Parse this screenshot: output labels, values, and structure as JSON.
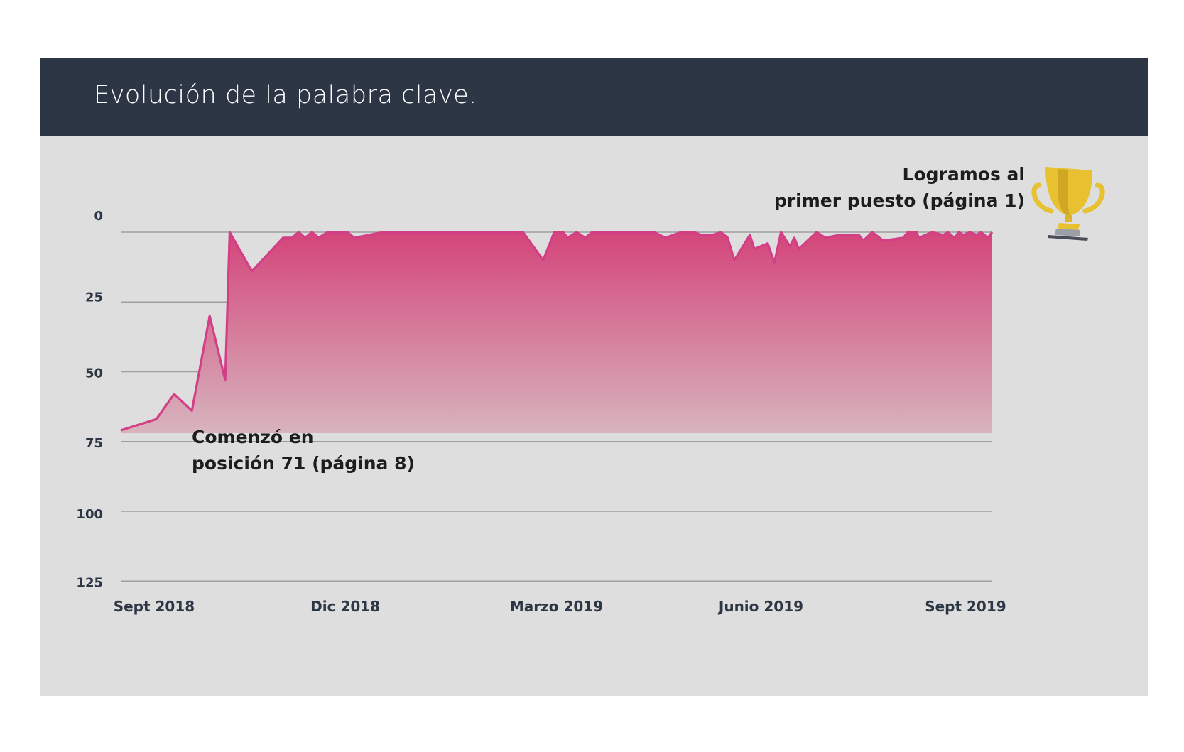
{
  "header": {
    "title": "Evolución de la palabra clave."
  },
  "icons": {
    "trophy": "trophy-icon"
  },
  "colors": {
    "line": "#d23f86",
    "header_bg": "#2d3644",
    "card_bg": "#dedede",
    "trophy": "#e7c12f"
  },
  "chart_data": {
    "type": "area",
    "title": "Evolución de la palabra clave.",
    "y_inverted": true,
    "ylim": [
      0,
      125
    ],
    "baseline": 72,
    "yticks": [
      "0",
      "25",
      "50",
      "75",
      "100",
      "125"
    ],
    "xlim": [
      "2018-08-31",
      "2019-09-27"
    ],
    "xticks": [
      {
        "label": "Sept 2018",
        "date": "2018-09-15"
      },
      {
        "label": "Dic 2018",
        "date": "2018-12-10"
      },
      {
        "label": "Marzo 2019",
        "date": "2019-03-15"
      },
      {
        "label": "Junio  2019",
        "date": "2019-06-15"
      },
      {
        "label": "Sept 2019",
        "date": "2019-09-15"
      }
    ],
    "grid": true,
    "series": [
      {
        "values": [
          [
            "2018-08-31",
            71
          ],
          [
            "2018-09-16",
            67
          ],
          [
            "2018-09-24",
            58
          ],
          [
            "2018-10-02",
            64
          ],
          [
            "2018-10-10",
            30
          ],
          [
            "2018-10-17",
            53
          ],
          [
            "2018-10-19",
            0
          ],
          [
            "2018-10-29",
            14
          ],
          [
            "2018-11-12",
            2
          ],
          [
            "2018-11-16",
            2
          ],
          [
            "2018-11-19",
            0
          ],
          [
            "2018-11-22",
            2
          ],
          [
            "2018-11-25",
            0
          ],
          [
            "2018-11-28",
            2
          ],
          [
            "2018-12-02",
            0
          ],
          [
            "2018-12-07",
            0
          ],
          [
            "2018-12-11",
            0
          ],
          [
            "2018-12-14",
            2
          ],
          [
            "2018-12-27",
            0
          ],
          [
            "2019-02-28",
            0
          ],
          [
            "2019-03-09",
            10
          ],
          [
            "2019-03-14",
            0
          ],
          [
            "2019-03-18",
            0
          ],
          [
            "2019-03-20",
            2
          ],
          [
            "2019-03-24",
            0
          ],
          [
            "2019-03-28",
            2
          ],
          [
            "2019-03-31",
            0
          ],
          [
            "2019-04-28",
            0
          ],
          [
            "2019-05-03",
            2
          ],
          [
            "2019-05-10",
            0
          ],
          [
            "2019-05-16",
            0
          ],
          [
            "2019-05-19",
            1
          ],
          [
            "2019-05-24",
            1
          ],
          [
            "2019-05-28",
            0
          ],
          [
            "2019-05-31",
            2
          ],
          [
            "2019-06-03",
            10
          ],
          [
            "2019-06-10",
            1
          ],
          [
            "2019-06-12",
            6
          ],
          [
            "2019-06-18",
            4
          ],
          [
            "2019-06-21",
            11
          ],
          [
            "2019-06-24",
            0
          ],
          [
            "2019-06-28",
            5
          ],
          [
            "2019-06-30",
            2
          ],
          [
            "2019-07-02",
            6
          ],
          [
            "2019-07-10",
            0
          ],
          [
            "2019-07-14",
            2
          ],
          [
            "2019-07-20",
            1
          ],
          [
            "2019-07-29",
            1
          ],
          [
            "2019-07-31",
            3
          ],
          [
            "2019-08-04",
            0
          ],
          [
            "2019-08-09",
            3
          ],
          [
            "2019-08-18",
            2
          ],
          [
            "2019-08-20",
            0
          ],
          [
            "2019-08-24",
            0
          ],
          [
            "2019-08-25",
            2
          ],
          [
            "2019-08-31",
            0
          ],
          [
            "2019-09-05",
            1
          ],
          [
            "2019-09-07",
            0
          ],
          [
            "2019-09-10",
            2
          ],
          [
            "2019-09-12",
            0
          ],
          [
            "2019-09-14",
            1
          ],
          [
            "2019-09-17",
            0
          ],
          [
            "2019-09-20",
            1
          ],
          [
            "2019-09-22",
            0
          ],
          [
            "2019-09-25",
            2
          ],
          [
            "2019-09-27",
            0
          ]
        ]
      }
    ],
    "annotations": [
      {
        "lines": [
          "Comenzó en",
          "posición 71 (página 8)"
        ],
        "anchor": "start"
      },
      {
        "lines": [
          "Logramos al",
          "primer puesto (página 1)"
        ],
        "anchor": "end"
      }
    ]
  }
}
